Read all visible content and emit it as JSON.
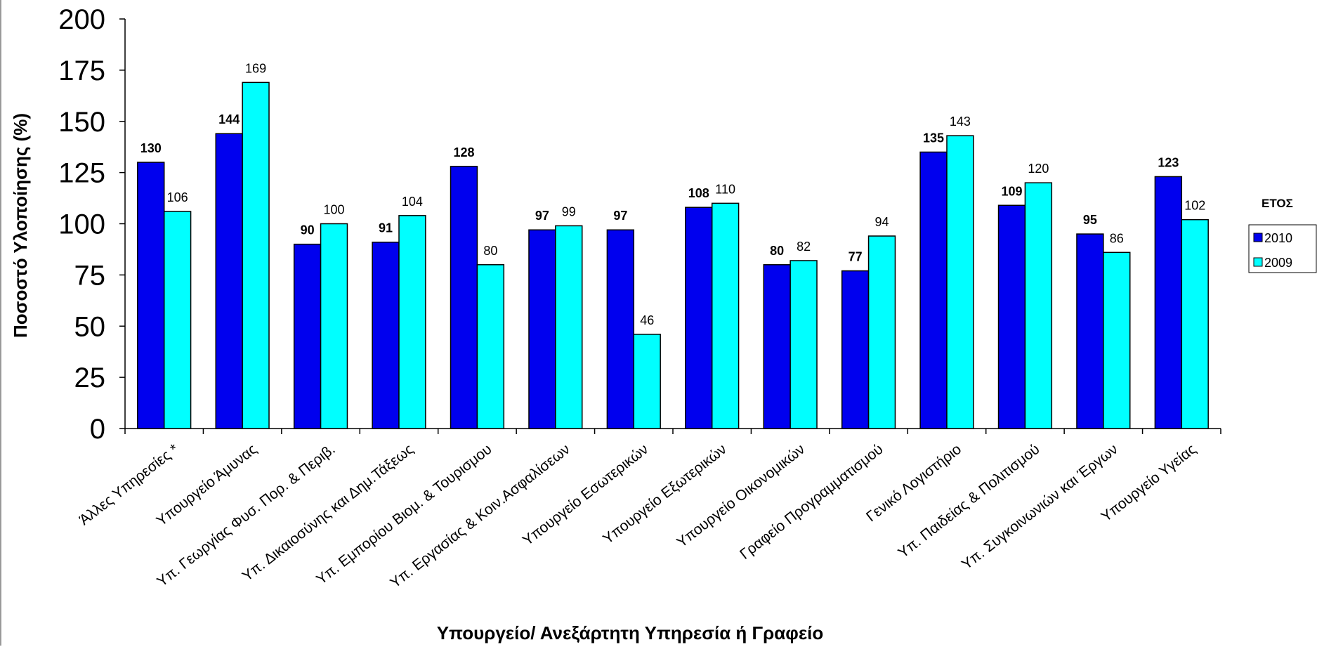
{
  "chart_data": {
    "type": "bar",
    "xlabel": "Υπουργείο/ Ανεξάρτητη Υπηρεσία ή Γραφείο",
    "ylabel": "Ποσοστό Υλοποίησης (%)",
    "ylim": [
      0,
      200
    ],
    "yticks": [
      0,
      25,
      50,
      75,
      100,
      125,
      150,
      175,
      200
    ],
    "grid": false,
    "legend_title": "ΕΤΟΣ",
    "legend_position": "right",
    "categories": [
      "Άλλες Υπηρεσίες *",
      "Υπουργείο Άμυνας",
      "Υπ. Γεωργίας Φυσ. Πορ. & Περιβ.",
      "Υπ. Δικαιοσύνης και Δημ.Τάξεως",
      "Υπ. Εμπορίου Βιομ. & Τουρισμου",
      "Υπ. Εργασίας & Κοιν.Ασφαλίσεων",
      "Υπουργείο Εσωτερικών",
      "Υπουργείο Εξωτερικών",
      "Υπουργείο Οικονομικών",
      "Γραφείο  Προγραμματισμού",
      "Γενικό Λογιστήριο",
      "Υπ. Παιδείας & Πολιτισμού",
      "Υπ. Συγκοινωνιών και Έργων",
      "Υπουργείο Υγείας"
    ],
    "series": [
      {
        "name": "2010",
        "color": "#0000ee",
        "values": [
          130,
          144,
          90,
          91,
          128,
          97,
          97,
          108,
          80,
          77,
          135,
          109,
          95,
          123
        ]
      },
      {
        "name": "2009",
        "color": "#00ffff",
        "values": [
          106,
          169,
          100,
          104,
          80,
          99,
          46,
          110,
          82,
          94,
          143,
          120,
          86,
          102
        ]
      }
    ]
  }
}
